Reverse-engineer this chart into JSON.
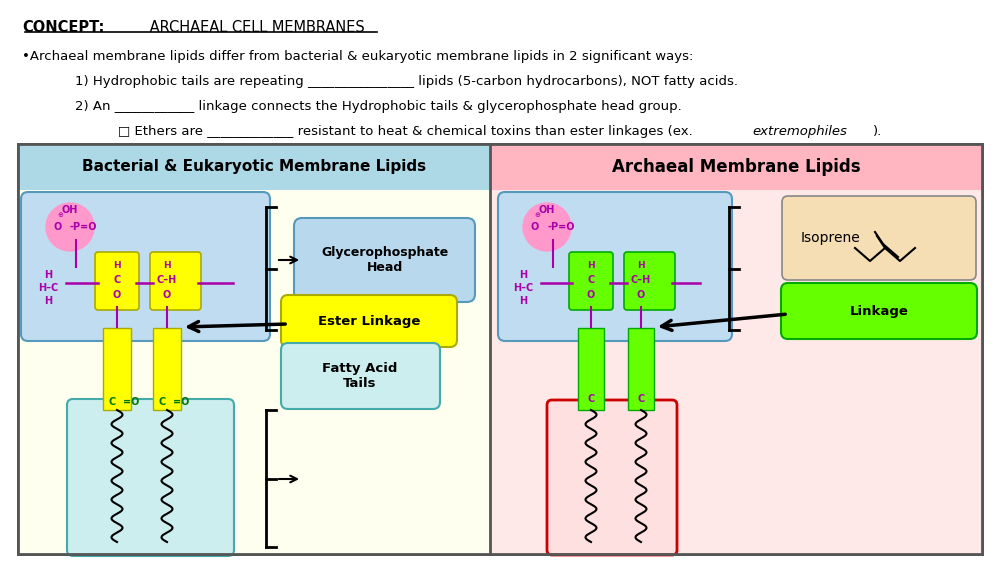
{
  "title_bold": "CONCEPT:",
  "title_rest": " ARCHAEAL CELL MEMBRANES",
  "bullet_text": "•Archaeal membrane lipids differ from bacterial & eukaryotic membrane lipids in 2 significant ways:",
  "point1": "1) Hydrophobic tails are repeating ________________ lipids (5-carbon hydrocarbons), NOT fatty acids.",
  "point2": "2) An ____________ linkage connects the Hydrophobic tails & glycerophosphate head group.",
  "point3": "   □ Ethers are _____________ resistant to heat & chemical toxins than ester linkages (ex. ",
  "point3_italic": "extremophiles",
  "point3_end": ").",
  "left_header": "Bacterial & Eukaryotic Membrane Lipids",
  "right_header": "Archaeal Membrane Lipids",
  "left_bg": "#FFFFF0",
  "right_bg": "#FFE8E8",
  "left_header_bg": "#ADD8E6",
  "right_header_bg": "#FFB6C1",
  "outer_border": "#555555",
  "glycerophosphate_label": "Glycerophosphate\nHead",
  "ester_linkage_label": "Ester Linkage",
  "fatty_acid_label": "Fatty Acid\nTails",
  "isoprene_label": "Isoprene",
  "ether_linkage_label": "Linkage",
  "figure_bg": "#FFFFFF",
  "purple": "#AA00AA",
  "green_highlight": "#66FF00",
  "yellow_highlight": "#FFFF00"
}
